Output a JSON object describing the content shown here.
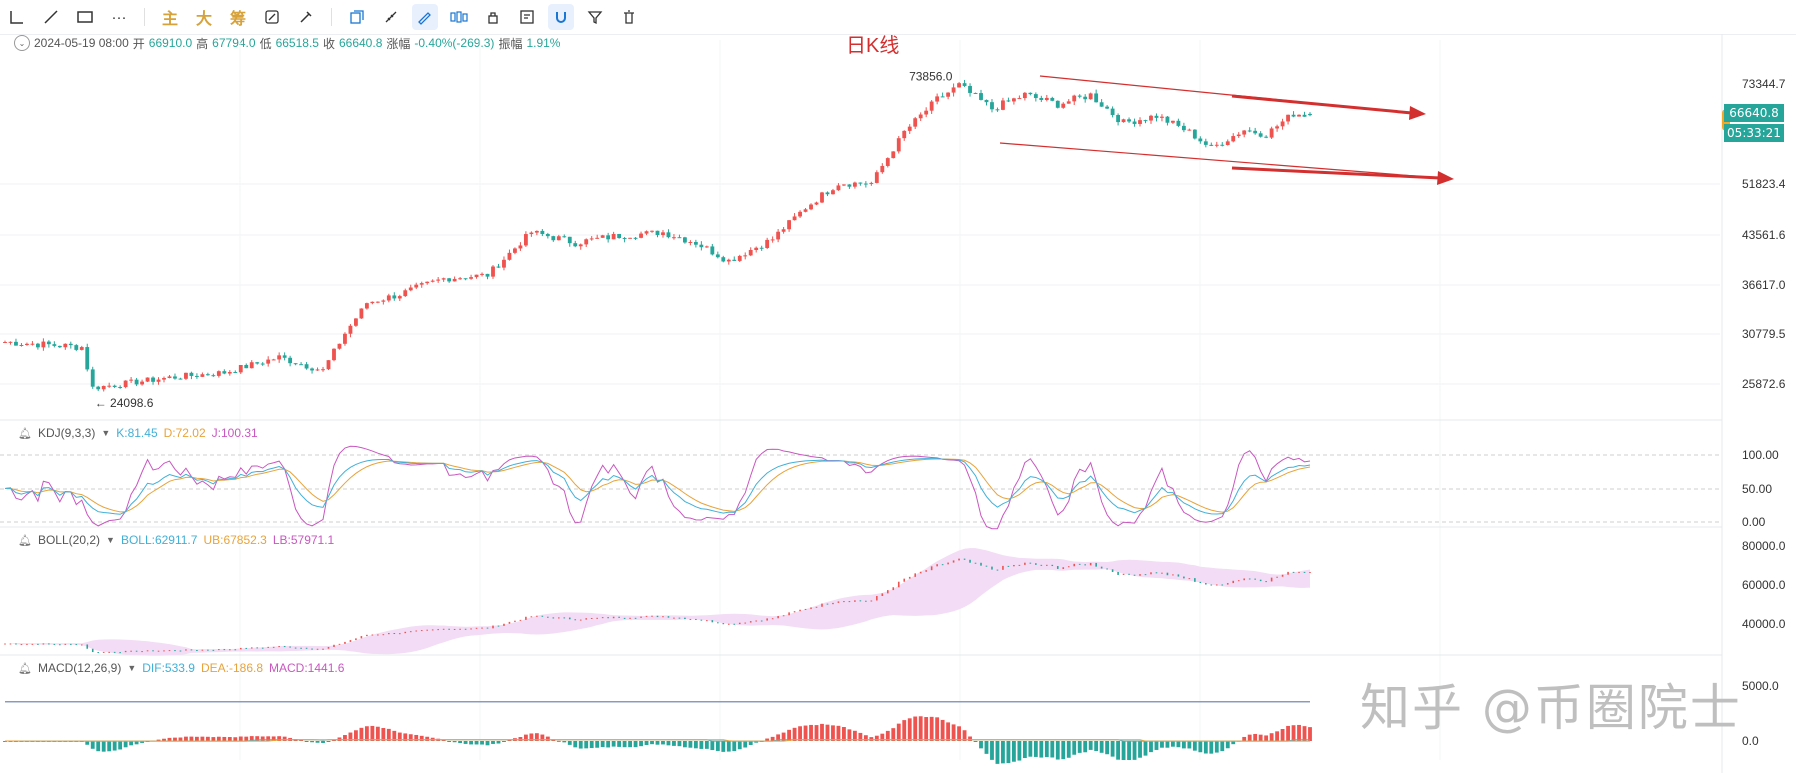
{
  "toolbar": {
    "items": [
      {
        "icon": "segment-icon"
      },
      {
        "icon": "line-icon"
      },
      {
        "icon": "rectangle-icon"
      },
      {
        "icon": "more-icon",
        "label": "···"
      }
    ],
    "indicator_buttons": [
      "主",
      "大",
      "筹"
    ],
    "tool_icons": [
      "measure-icon",
      "brush-icon",
      "copy-icon",
      "ruler-icon",
      "pen-icon",
      "bars-icon",
      "lock-icon",
      "note-icon",
      "magnet-icon",
      "filter-icon",
      "trash-icon"
    ]
  },
  "ohlc": {
    "date": "2024-05-19 08:00",
    "open_label": "开",
    "open": "66910.0",
    "high_label": "高",
    "high": "67794.0",
    "low_label": "低",
    "low": "66518.5",
    "close_label": "收",
    "close": "66640.8",
    "change_label": "涨幅",
    "change": "-0.40%(-269.3)",
    "amplitude_label": "振幅",
    "amplitude": "1.91%"
  },
  "title": "日K线",
  "price_axis": [
    "73344.7",
    "51823.4",
    "43561.6",
    "36617.0",
    "30779.5",
    "25872.6"
  ],
  "badges": {
    "price": "66640.8",
    "countdown": "05:33:21"
  },
  "annotations": {
    "high": "73856.0",
    "low": "← 24098.6"
  },
  "kdj": {
    "name": "KDJ(9,3,3)",
    "k": "K:81.45",
    "d": "D:72.02",
    "j": "J:100.31",
    "axis": [
      "100.00",
      "50.00",
      "0.00"
    ]
  },
  "boll": {
    "name": "BOLL(20,2)",
    "mid": "BOLL:62911.7",
    "ub": "UB:67852.3",
    "lb": "LB:57971.1",
    "axis": [
      "80000.0",
      "60000.0",
      "40000.0"
    ]
  },
  "macd": {
    "name": "MACD(12,26,9)",
    "dif": "DIF:533.9",
    "dea": "DEA:-186.8",
    "macd": "MACD:1441.6",
    "axis": [
      "5000.0",
      "0.0"
    ]
  },
  "watermark": "知乎 @币圈院士",
  "colors": {
    "up": "#ef5350",
    "down": "#26a69a",
    "arrow": "#d32f2f",
    "k": "#40b0d8",
    "d": "#e8a33a",
    "j": "#c957c0"
  },
  "chart_data": [
    {
      "type": "candlestick",
      "title": "日K线",
      "ylim": [
        22000,
        76000
      ],
      "y_ticks": [
        73344.7,
        51823.4,
        43561.6,
        36617.0,
        30779.5,
        25872.6
      ],
      "key_points": [
        {
          "index": 0,
          "value": 30000
        },
        {
          "index": 14,
          "value": 29500
        },
        {
          "index": 16,
          "value": 25500
        },
        {
          "index": 30,
          "value": 26500
        },
        {
          "index": 40,
          "value": 27000
        },
        {
          "index": 50,
          "value": 28500
        },
        {
          "index": 58,
          "value": 27200
        },
        {
          "index": 66,
          "value": 34500
        },
        {
          "index": 72,
          "value": 35500
        },
        {
          "index": 80,
          "value": 37500
        },
        {
          "index": 88,
          "value": 38000
        },
        {
          "index": 96,
          "value": 44000
        },
        {
          "index": 104,
          "value": 42500
        },
        {
          "index": 112,
          "value": 43500
        },
        {
          "index": 120,
          "value": 44000
        },
        {
          "index": 126,
          "value": 42500
        },
        {
          "index": 132,
          "value": 40000
        },
        {
          "index": 140,
          "value": 43000
        },
        {
          "index": 146,
          "value": 48000
        },
        {
          "index": 152,
          "value": 52000
        },
        {
          "index": 158,
          "value": 52000
        },
        {
          "index": 164,
          "value": 63000
        },
        {
          "index": 170,
          "value": 70000
        },
        {
          "index": 174,
          "value": 73000
        },
        {
          "index": 180,
          "value": 68000
        },
        {
          "index": 186,
          "value": 71000
        },
        {
          "index": 192,
          "value": 69000
        },
        {
          "index": 198,
          "value": 71000
        },
        {
          "index": 204,
          "value": 65000
        },
        {
          "index": 210,
          "value": 66500
        },
        {
          "index": 216,
          "value": 63000
        },
        {
          "index": 220,
          "value": 59500
        },
        {
          "index": 226,
          "value": 63500
        },
        {
          "index": 230,
          "value": 62500
        },
        {
          "index": 235,
          "value": 67000
        },
        {
          "index": 238,
          "value": 66640.8
        }
      ],
      "high": 73856.0,
      "low": 24098.6,
      "last": {
        "open": 66910.0,
        "high": 67794.0,
        "low": 66518.5,
        "close": 66640.8
      }
    },
    {
      "type": "line",
      "name": "KDJ(9,3,3)",
      "last": {
        "K": 81.45,
        "D": 72.02,
        "J": 100.31
      },
      "ylim": [
        0,
        100
      ]
    },
    {
      "type": "line",
      "name": "BOLL(20,2)",
      "last": {
        "BOLL": 62911.7,
        "UB": 67852.3,
        "LB": 57971.1
      },
      "ylim": [
        30000,
        80000
      ]
    },
    {
      "type": "bar",
      "name": "MACD(12,26,9)",
      "last": {
        "DIF": 533.9,
        "DEA": -186.8,
        "MACD": 1441.6
      }
    }
  ]
}
